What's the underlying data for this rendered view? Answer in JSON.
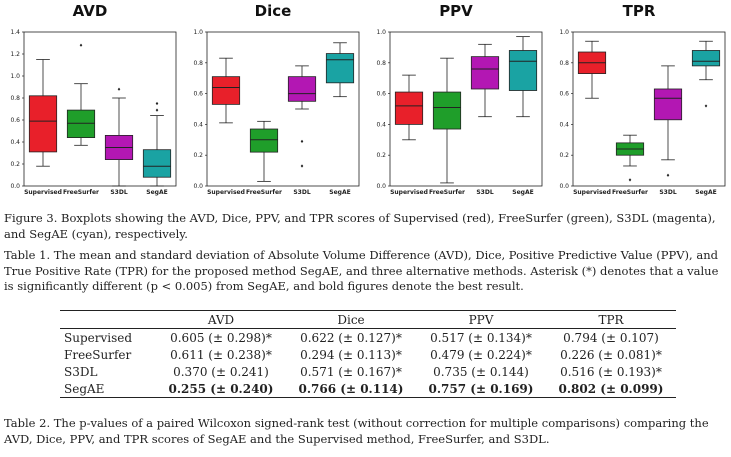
{
  "chart_data": [
    {
      "type": "box",
      "title": "AVD",
      "categories": [
        "Supervised",
        "FreeSurfer",
        "S3DL",
        "SegAE"
      ],
      "colors": [
        "#e8202a",
        "#1f9e2a",
        "#b317b3",
        "#1aa3a3"
      ],
      "ylim": [
        0,
        1.4
      ],
      "yticks": [
        "0.0",
        "0.2",
        "0.4",
        "0.6",
        "0.8",
        "1.0",
        "1.2",
        "1.4"
      ],
      "boxes": [
        {
          "whisker_low": 0.18,
          "q1": 0.31,
          "median": 0.59,
          "q3": 0.82,
          "whisker_high": 1.15,
          "outliers": []
        },
        {
          "whisker_low": 0.37,
          "q1": 0.44,
          "median": 0.57,
          "q3": 0.69,
          "whisker_high": 0.93,
          "outliers": [
            1.28
          ]
        },
        {
          "whisker_low": 0.0,
          "q1": 0.24,
          "median": 0.35,
          "q3": 0.46,
          "whisker_high": 0.8,
          "outliers": [
            0.88
          ]
        },
        {
          "whisker_low": 0.0,
          "q1": 0.08,
          "median": 0.18,
          "q3": 0.33,
          "whisker_high": 0.64,
          "outliers": [
            0.69,
            0.75
          ]
        }
      ]
    },
    {
      "type": "box",
      "title": "Dice",
      "categories": [
        "Supervised",
        "FreeSurfer",
        "S3DL",
        "SegAE"
      ],
      "colors": [
        "#e8202a",
        "#1f9e2a",
        "#b317b3",
        "#1aa3a3"
      ],
      "ylim": [
        0,
        1.0
      ],
      "yticks": [
        "0.0",
        "0.2",
        "0.4",
        "0.6",
        "0.8",
        "1.0"
      ],
      "boxes": [
        {
          "whisker_low": 0.41,
          "q1": 0.53,
          "median": 0.64,
          "q3": 0.71,
          "whisker_high": 0.83,
          "outliers": []
        },
        {
          "whisker_low": 0.03,
          "q1": 0.22,
          "median": 0.3,
          "q3": 0.37,
          "whisker_high": 0.42,
          "outliers": []
        },
        {
          "whisker_low": 0.5,
          "q1": 0.55,
          "median": 0.6,
          "q3": 0.71,
          "whisker_high": 0.78,
          "outliers": [
            0.29,
            0.13
          ]
        },
        {
          "whisker_low": 0.58,
          "q1": 0.67,
          "median": 0.82,
          "q3": 0.86,
          "whisker_high": 0.93,
          "outliers": []
        }
      ]
    },
    {
      "type": "box",
      "title": "PPV",
      "categories": [
        "Supervised",
        "FreeSurfer",
        "S3DL",
        "SegAE"
      ],
      "colors": [
        "#e8202a",
        "#1f9e2a",
        "#b317b3",
        "#1aa3a3"
      ],
      "ylim": [
        0,
        1.0
      ],
      "yticks": [
        "0.0",
        "0.2",
        "0.4",
        "0.6",
        "0.8",
        "1.0"
      ],
      "boxes": [
        {
          "whisker_low": 0.3,
          "q1": 0.4,
          "median": 0.52,
          "q3": 0.61,
          "whisker_high": 0.72,
          "outliers": []
        },
        {
          "whisker_low": 0.02,
          "q1": 0.37,
          "median": 0.51,
          "q3": 0.61,
          "whisker_high": 0.83,
          "outliers": []
        },
        {
          "whisker_low": 0.45,
          "q1": 0.63,
          "median": 0.76,
          "q3": 0.84,
          "whisker_high": 0.92,
          "outliers": []
        },
        {
          "whisker_low": 0.45,
          "q1": 0.62,
          "median": 0.81,
          "q3": 0.88,
          "whisker_high": 0.97,
          "outliers": []
        }
      ]
    },
    {
      "type": "box",
      "title": "TPR",
      "categories": [
        "Supervised",
        "FreeSurfer",
        "S3DL",
        "SegAE"
      ],
      "colors": [
        "#e8202a",
        "#1f9e2a",
        "#b317b3",
        "#1aa3a3"
      ],
      "ylim": [
        0,
        1.0
      ],
      "yticks": [
        "0.0",
        "0.2",
        "0.4",
        "0.6",
        "0.8",
        "1.0"
      ],
      "boxes": [
        {
          "whisker_low": 0.57,
          "q1": 0.73,
          "median": 0.8,
          "q3": 0.87,
          "whisker_high": 0.94,
          "outliers": []
        },
        {
          "whisker_low": 0.13,
          "q1": 0.2,
          "median": 0.24,
          "q3": 0.28,
          "whisker_high": 0.33,
          "outliers": [
            0.04
          ]
        },
        {
          "whisker_low": 0.17,
          "q1": 0.43,
          "median": 0.57,
          "q3": 0.63,
          "whisker_high": 0.78,
          "outliers": [
            0.07
          ]
        },
        {
          "whisker_low": 0.69,
          "q1": 0.78,
          "median": 0.81,
          "q3": 0.88,
          "whisker_high": 0.94,
          "outliers": [
            0.52
          ]
        }
      ]
    }
  ],
  "captions": {
    "figure3": "Figure 3. Boxplots showing the AVD, Dice, PPV, and TPR scores of Supervised (red), FreeSurfer (green), S3DL (magenta), and SegAE (cyan), respectively.",
    "table1": "Table 1. The mean and standard deviation of Absolute Volume Difference (AVD), Dice, Positive Predictive Value (PPV), and True Positive Rate (TPR) for the proposed method SegAE, and three alternative methods. Asterisk (*) denotes that a value is significantly different (p < 0.005) from SegAE, and bold figures denote the best result.",
    "table2": "Table 2. The p-values of a paired Wilcoxon signed-rank test (without correction for multiple comparisons) comparing the AVD, Dice, PPV, and TPR scores of SegAE and the Supervised method, FreeSurfer, and S3DL."
  },
  "table": {
    "headers": [
      "",
      "AVD",
      "Dice",
      "PPV",
      "TPR"
    ],
    "rows": [
      {
        "method": "Supervised",
        "cells": [
          "0.605 (± 0.298)*",
          "0.622 (± 0.127)*",
          "0.517 (± 0.134)*",
          "0.794 (± 0.107)"
        ]
      },
      {
        "method": "FreeSurfer",
        "cells": [
          "0.611 (± 0.238)*",
          "0.294 (± 0.113)*",
          "0.479 (± 0.224)*",
          "0.226 (± 0.081)*"
        ]
      },
      {
        "method": "S3DL",
        "cells": [
          "0.370 (± 0.241)",
          "0.571 (± 0.167)*",
          "0.735 (± 0.144)",
          "0.516 (± 0.193)*"
        ]
      },
      {
        "method": "SegAE",
        "cells": [
          "0.255 (± 0.240)",
          "0.766 (± 0.114)",
          "0.757 (± 0.169)",
          "0.802 (± 0.099)"
        ]
      }
    ]
  }
}
